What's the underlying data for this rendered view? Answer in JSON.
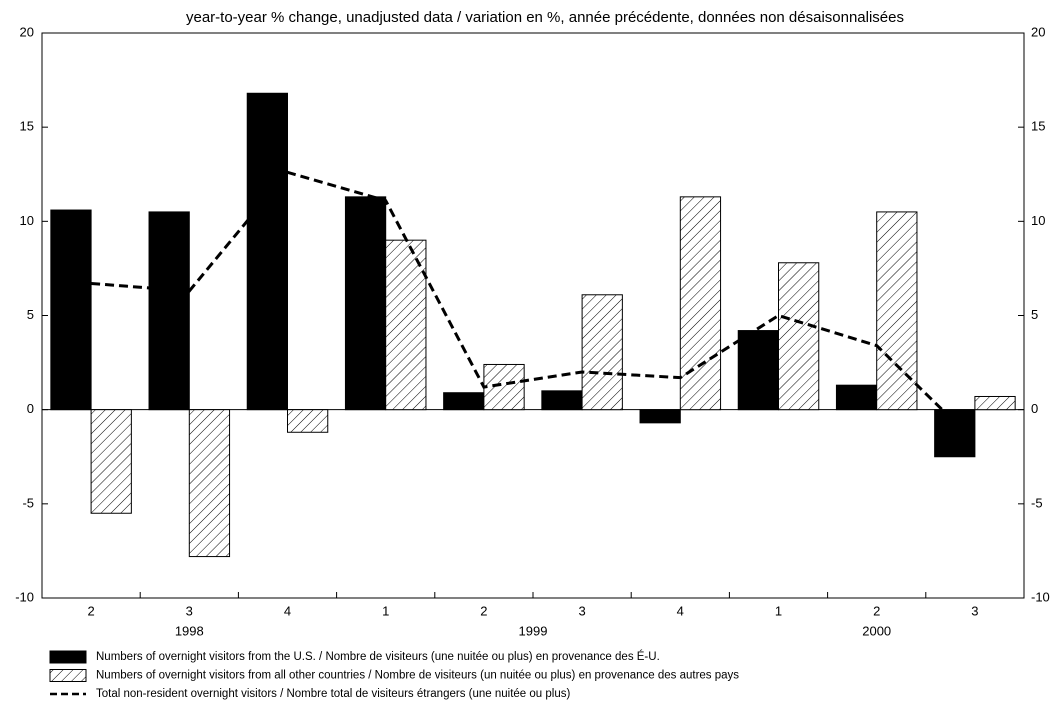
{
  "chart_data": {
    "type": "bar_line",
    "title": "year-to-year % change, unadjusted data / variation en %, année précédente, données non désaisonnalisées",
    "categories": [
      "2",
      "3",
      "4",
      "1",
      "2",
      "3",
      "4",
      "1",
      "2",
      "3"
    ],
    "groups": [
      {
        "name": "1998",
        "count": 3
      },
      {
        "name": "1999",
        "count": 4
      },
      {
        "name": "2000",
        "count": 3
      }
    ],
    "series": [
      {
        "name": "Numbers of overnight visitors from the U.S. / Nombre de visiteurs (une nuitée ou plus) en provenance des É-U.",
        "type": "bar",
        "color": "#000000",
        "values": [
          10.6,
          10.5,
          16.8,
          11.3,
          0.9,
          1.0,
          -0.7,
          4.2,
          1.3,
          -2.5
        ]
      },
      {
        "name": "Numbers of overnight visitors from all other countries / Nombre de visiteurs (un nuitée ou plus) en provenance des autres pays",
        "type": "bar",
        "color": "#000000",
        "pattern": "hatch",
        "values": [
          -5.5,
          -7.8,
          -1.2,
          9.0,
          2.4,
          6.1,
          11.3,
          7.8,
          10.5,
          0.7
        ]
      },
      {
        "name": "Total non-resident overnight visitors / Nombre total de visiteurs étrangers (une nuitée ou plus)",
        "type": "line",
        "color": "#000000",
        "dashed": true,
        "values": [
          6.7,
          6.3,
          12.6,
          11.1,
          1.2,
          2.0,
          1.7,
          5.0,
          3.4,
          -1.7
        ]
      }
    ],
    "ylim": [
      -10,
      20
    ],
    "yticks": [
      -10,
      -5,
      0,
      5,
      10,
      15,
      20
    ],
    "y2lim": [
      -10,
      20
    ],
    "y2ticks": [
      -10,
      -5,
      0,
      5,
      10,
      15,
      20
    ],
    "grid": false
  }
}
